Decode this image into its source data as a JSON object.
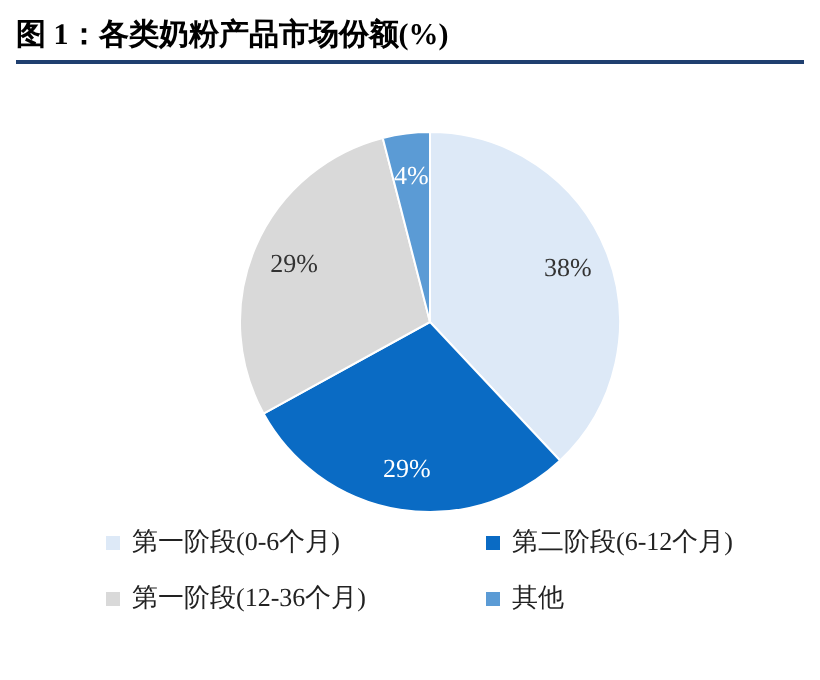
{
  "chart_data": {
    "type": "pie",
    "title": "图 1：各类奶粉产品市场份额(%)",
    "categories": [
      "第一阶段(0-6个月)",
      "第二阶段(6-12个月)",
      "第一阶段(12-36个月)",
      "其他"
    ],
    "values": [
      38,
      29,
      29,
      4
    ],
    "value_labels": [
      "38%",
      "29%",
      "29%",
      "4%"
    ],
    "colors": [
      "#dde9f7",
      "#0a6bc4",
      "#d9d9d9",
      "#5b9bd5"
    ],
    "legend": "bottom"
  }
}
